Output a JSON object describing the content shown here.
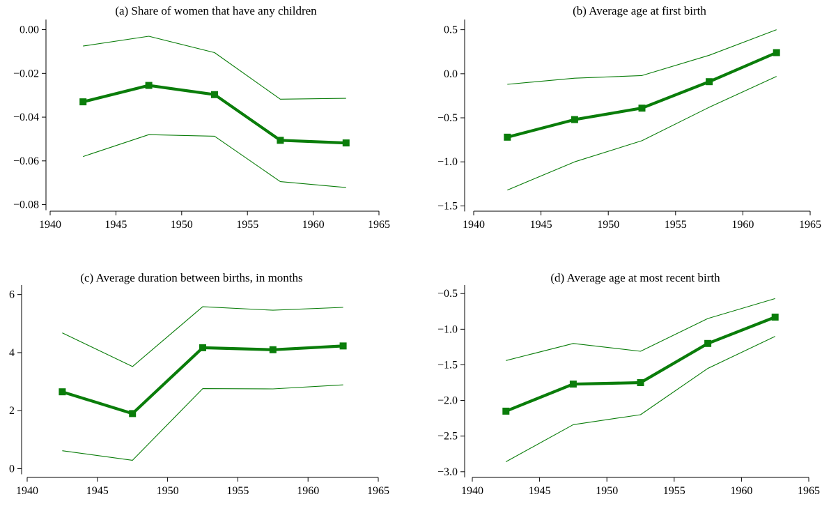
{
  "colors": {
    "estimate": "#0a7d0a",
    "ci": "#0a7d0a",
    "axis": "#000000"
  },
  "chart_data": [
    {
      "type": "line",
      "title": "(a) Share of women that have any children",
      "x": [
        1942.5,
        1947.5,
        1952.5,
        1957.5,
        1962.5
      ],
      "xlim": [
        1940,
        1965
      ],
      "xticks": [
        1940,
        1945,
        1950,
        1955,
        1960,
        1965
      ],
      "ylim": [
        -0.083,
        0.004
      ],
      "yticks": [
        0.0,
        -0.02,
        -0.04,
        -0.06,
        -0.08
      ],
      "ytick_labels": [
        "0.00",
        "−0.02",
        "−0.04",
        "−0.06",
        "−0.08"
      ],
      "series": [
        {
          "role": "estimate",
          "marker": "square",
          "values": [
            -0.033,
            -0.0255,
            -0.0297,
            -0.0506,
            -0.0518
          ]
        },
        {
          "role": "ci_upper",
          "marker": "none",
          "values": [
            -0.0075,
            -0.003,
            -0.0105,
            -0.0318,
            -0.0314
          ]
        },
        {
          "role": "ci_lower",
          "marker": "none",
          "values": [
            -0.058,
            -0.048,
            -0.0487,
            -0.0695,
            -0.0722
          ]
        }
      ]
    },
    {
      "type": "line",
      "title": "(b) Average age at first birth",
      "x": [
        1942.5,
        1947.5,
        1952.5,
        1957.5,
        1962.5
      ],
      "xlim": [
        1940,
        1965
      ],
      "xticks": [
        1940,
        1945,
        1950,
        1955,
        1960,
        1965
      ],
      "ylim": [
        -1.56,
        0.6
      ],
      "yticks": [
        0.5,
        0.0,
        -0.5,
        -1.0,
        -1.5
      ],
      "ytick_labels": [
        "0.5",
        "0.0",
        "−0.5",
        "−1.0",
        "−1.5"
      ],
      "series": [
        {
          "role": "estimate",
          "marker": "square",
          "values": [
            -0.72,
            -0.52,
            -0.39,
            -0.09,
            0.24
          ]
        },
        {
          "role": "ci_upper",
          "marker": "none",
          "values": [
            -0.12,
            -0.05,
            -0.02,
            0.21,
            0.5
          ]
        },
        {
          "role": "ci_lower",
          "marker": "none",
          "values": [
            -1.32,
            -1.0,
            -0.76,
            -0.38,
            -0.03
          ]
        }
      ]
    },
    {
      "type": "line",
      "title": "(c) Average duration between births, in months",
      "x": [
        1942.5,
        1947.5,
        1952.5,
        1957.5,
        1962.5
      ],
      "xlim": [
        1940,
        1965
      ],
      "xticks": [
        1940,
        1945,
        1950,
        1955,
        1960,
        1965
      ],
      "ylim": [
        -0.3,
        6.28
      ],
      "yticks": [
        0,
        2,
        4,
        6
      ],
      "ytick_labels": [
        "0",
        "2",
        "4",
        "6"
      ],
      "series": [
        {
          "role": "estimate",
          "marker": "square",
          "values": [
            2.65,
            1.9,
            4.17,
            4.1,
            4.23
          ]
        },
        {
          "role": "ci_upper",
          "marker": "none",
          "values": [
            4.68,
            3.52,
            5.58,
            5.46,
            5.56
          ]
        },
        {
          "role": "ci_lower",
          "marker": "none",
          "values": [
            0.62,
            0.29,
            2.76,
            2.75,
            2.89
          ]
        }
      ]
    },
    {
      "type": "line",
      "title": "(d) Average age at most recent birth",
      "x": [
        1942.5,
        1947.5,
        1952.5,
        1957.5,
        1962.5
      ],
      "xlim": [
        1940,
        1965
      ],
      "xticks": [
        1940,
        1945,
        1950,
        1955,
        1960,
        1965
      ],
      "ylim": [
        -3.08,
        -0.4
      ],
      "yticks": [
        -0.5,
        -1.0,
        -1.5,
        -2.0,
        -2.5,
        -3.0
      ],
      "ytick_labels": [
        "−0.5",
        "−1.0",
        "−1.5",
        "−2.0",
        "−2.5",
        "−3.0"
      ],
      "series": [
        {
          "role": "estimate",
          "marker": "square",
          "values": [
            -2.15,
            -1.77,
            -1.75,
            -1.2,
            -0.83
          ]
        },
        {
          "role": "ci_upper",
          "marker": "none",
          "values": [
            -1.44,
            -1.2,
            -1.31,
            -0.85,
            -0.57
          ]
        },
        {
          "role": "ci_lower",
          "marker": "none",
          "values": [
            -2.86,
            -2.34,
            -2.2,
            -1.55,
            -1.1
          ]
        }
      ]
    }
  ]
}
